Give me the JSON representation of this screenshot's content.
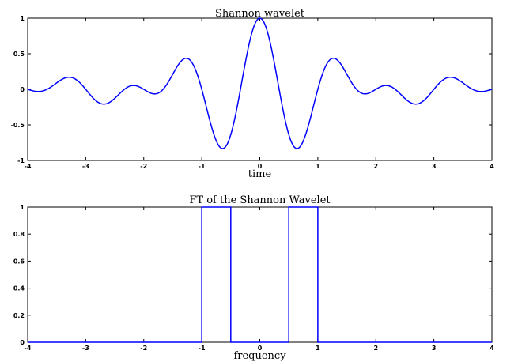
{
  "chart_data": [
    {
      "type": "line",
      "title": "Shannon wavelet",
      "xlabel": "time",
      "ylabel": "",
      "xlim": [
        -4,
        4
      ],
      "ylim": [
        -1,
        1
      ],
      "xticks": [
        -4,
        -3,
        -2,
        -1,
        0,
        1,
        2,
        3,
        4
      ],
      "yticks": [
        -1,
        -0.5,
        0,
        0.5,
        1
      ],
      "xtick_labels": [
        "-4",
        "-3",
        "-2",
        "-1",
        "0",
        "1",
        "2",
        "3",
        "4"
      ],
      "ytick_labels": [
        "-1",
        "-0.5",
        "0",
        "0.5",
        "1"
      ],
      "grid": false,
      "series": [
        {
          "color": "#0000ff",
          "function": "sinc(t/2)*cos(3*pi*t/2)",
          "x": [
            -4,
            -3.75,
            -3.5,
            -3.25,
            -3,
            -2.75,
            -2.5,
            -2.25,
            -2,
            -1.75,
            -1.5,
            -1.25,
            -1,
            -0.75,
            -0.5,
            -0.25,
            0,
            0.25,
            0.5,
            0.75,
            1,
            1.25,
            1.5,
            1.75,
            2,
            2.25,
            2.5,
            2.75,
            3,
            3.25,
            3.5,
            3.75,
            4
          ],
          "y": [
            0,
            -0.03,
            0.09,
            0.18,
            0,
            -0.21,
            -0.13,
            0.07,
            0,
            -0.16,
            0.0,
            0.42,
            0,
            -0.67,
            -0.64,
            0.35,
            1,
            0.35,
            -0.64,
            -0.67,
            0,
            0.42,
            0.0,
            -0.16,
            0,
            0.07,
            -0.13,
            -0.21,
            0,
            0.18,
            0.09,
            -0.03,
            0
          ]
        }
      ]
    },
    {
      "type": "line",
      "title": "FT of the Shannon Wavelet",
      "xlabel": "frequency",
      "ylabel": "",
      "xlim": [
        -4,
        4
      ],
      "ylim": [
        0,
        1
      ],
      "xticks": [
        -4,
        -3,
        -2,
        -1,
        0,
        1,
        2,
        3,
        4
      ],
      "yticks": [
        0,
        0.2,
        0.4,
        0.6,
        0.8,
        1
      ],
      "xtick_labels": [
        "-4",
        "-3",
        "-2",
        "-1",
        "0",
        "1",
        "2",
        "3",
        "4"
      ],
      "ytick_labels": [
        "0",
        "0.2",
        "0.4",
        "0.6",
        "0.8",
        "1"
      ],
      "grid": false,
      "series": [
        {
          "color": "#0000ff",
          "x": [
            -4,
            -1,
            -1,
            -0.5,
            -0.5,
            0.5,
            0.5,
            1,
            1,
            4
          ],
          "y": [
            0,
            0,
            1,
            1,
            0,
            0,
            1,
            1,
            0,
            0
          ]
        }
      ]
    }
  ]
}
